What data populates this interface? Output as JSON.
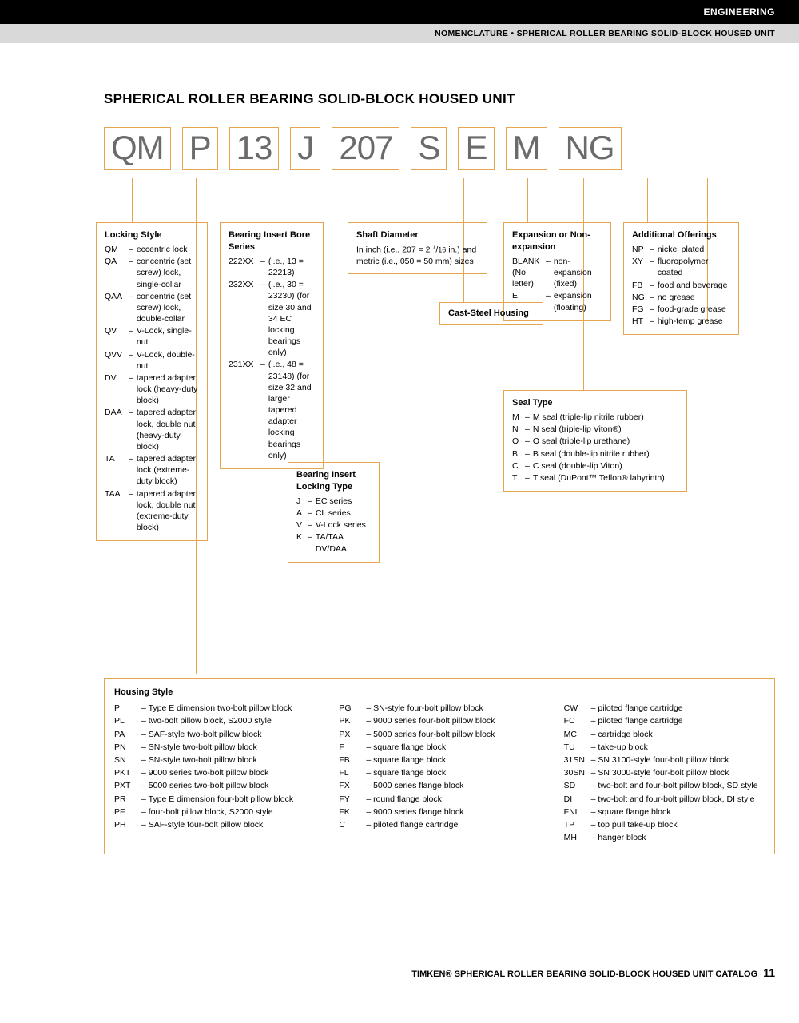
{
  "header": {
    "section": "ENGINEERING",
    "breadcrumb": "NOMENCLATURE • SPHERICAL ROLLER BEARING SOLID-BLOCK HOUSED UNIT"
  },
  "title": "SPHERICAL ROLLER BEARING SOLID-BLOCK HOUSED UNIT",
  "code_parts": [
    "QM",
    "P",
    "13",
    "J",
    "207",
    "S",
    "E",
    "M",
    "NG"
  ],
  "colors": {
    "box_border": "#e8a550",
    "code_text": "#6b6b6b",
    "header_black": "#000000",
    "header_gray": "#d9d9d9"
  },
  "locking_style": {
    "title": "Locking Style",
    "items": [
      {
        "c": "QM",
        "v": "eccentric lock"
      },
      {
        "c": "QA",
        "v": "concentric (set screw) lock, single-collar"
      },
      {
        "c": "QAA",
        "v": "concentric (set screw) lock, double-collar"
      },
      {
        "c": "QV",
        "v": "V-Lock, single-nut"
      },
      {
        "c": "QVV",
        "v": "V-Lock, double-nut"
      },
      {
        "c": "DV",
        "v": "tapered adapter lock (heavy-duty block)"
      },
      {
        "c": "DAA",
        "v": "tapered adapter lock, double nut (heavy-duty block)"
      },
      {
        "c": "TA",
        "v": "tapered adapter lock (extreme-duty block)"
      },
      {
        "c": "TAA",
        "v": "tapered adapter lock, double nut (extreme-duty block)"
      }
    ]
  },
  "bore_series": {
    "title": "Bearing Insert Bore Series",
    "items": [
      {
        "c": "222XX",
        "v": "(i.e., 13 = 22213)"
      },
      {
        "c": "232XX",
        "v": "(i.e., 30 = 23230) (for size 30 and 34 EC locking bearings only)"
      },
      {
        "c": "231XX",
        "v": "(i.e., 48 = 23148) (for size 32 and larger tapered adapter locking bearings only)"
      }
    ]
  },
  "locking_type": {
    "title": "Bearing Insert Locking Type",
    "items": [
      {
        "c": "J",
        "v": "EC series"
      },
      {
        "c": "A",
        "v": "CL series"
      },
      {
        "c": "V",
        "v": "V-Lock series"
      },
      {
        "c": "K",
        "v": "TA/TAA DV/DAA"
      }
    ]
  },
  "shaft_diameter": {
    "title": "Shaft Diameter",
    "text": "In inch (i.e., 207 = 2 7/16 in.) and metric (i.e., 050 = 50 mm) sizes"
  },
  "cast_steel": {
    "title": "Cast-Steel Housing"
  },
  "expansion": {
    "title": "Expansion or Non-expansion",
    "items": [
      {
        "c": "BLANK (No letter)",
        "v": "non-expansion (fixed)"
      },
      {
        "c": "E",
        "v": "expansion (floating)"
      }
    ]
  },
  "seal_type": {
    "title": "Seal Type",
    "items": [
      {
        "c": "M",
        "v": "M seal (triple-lip nitrile rubber)"
      },
      {
        "c": "N",
        "v": "N seal (triple-lip Viton®)"
      },
      {
        "c": "O",
        "v": "O seal (triple-lip urethane)"
      },
      {
        "c": "B",
        "v": "B seal (double-lip nitrile rubber)"
      },
      {
        "c": "C",
        "v": "C seal (double-lip Viton)"
      },
      {
        "c": "T",
        "v": "T seal (DuPont™ Teflon® labyrinth)"
      }
    ]
  },
  "additional": {
    "title": "Additional Offerings",
    "items": [
      {
        "c": "NP",
        "v": "nickel plated"
      },
      {
        "c": "XY",
        "v": "fluoropolymer coated"
      },
      {
        "c": "FB",
        "v": "food and beverage"
      },
      {
        "c": "NG",
        "v": "no grease"
      },
      {
        "c": "FG",
        "v": "food-grade grease"
      },
      {
        "c": "HT",
        "v": "high-temp grease"
      }
    ]
  },
  "housing_style": {
    "title": "Housing Style",
    "col1": [
      {
        "c": "P",
        "v": "Type E dimension two-bolt pillow block"
      },
      {
        "c": "PL",
        "v": "two-bolt pillow block, S2000 style"
      },
      {
        "c": "PA",
        "v": "SAF-style two-bolt pillow block"
      },
      {
        "c": "PN",
        "v": "SN-style two-bolt pillow block"
      },
      {
        "c": "SN",
        "v": "SN-style two-bolt pillow block"
      },
      {
        "c": "PKT",
        "v": "9000 series two-bolt pillow block"
      },
      {
        "c": "PXT",
        "v": "5000 series two-bolt pillow block"
      },
      {
        "c": "PR",
        "v": "Type E dimension four-bolt pillow block"
      },
      {
        "c": "PF",
        "v": "four-bolt pillow block, S2000 style"
      },
      {
        "c": "PH",
        "v": "SAF-style four-bolt pillow block"
      }
    ],
    "col2": [
      {
        "c": "PG",
        "v": "SN-style four-bolt pillow block"
      },
      {
        "c": "PK",
        "v": "9000 series four-bolt pillow block"
      },
      {
        "c": "PX",
        "v": "5000 series four-bolt pillow block"
      },
      {
        "c": "F",
        "v": "square flange block"
      },
      {
        "c": "FB",
        "v": "square flange block"
      },
      {
        "c": "FL",
        "v": "square flange block"
      },
      {
        "c": "FX",
        "v": "5000 series flange block"
      },
      {
        "c": "FY",
        "v": "round flange block"
      },
      {
        "c": "FK",
        "v": "9000 series flange block"
      },
      {
        "c": "C",
        "v": "piloted flange cartridge"
      }
    ],
    "col3": [
      {
        "c": "CW",
        "v": "piloted flange cartridge"
      },
      {
        "c": "FC",
        "v": "piloted flange cartridge"
      },
      {
        "c": "MC",
        "v": "cartridge block"
      },
      {
        "c": "TU",
        "v": "take-up block"
      },
      {
        "c": "31SN",
        "v": "SN 3100-style four-bolt pillow block"
      },
      {
        "c": "30SN",
        "v": "SN 3000-style four-bolt pillow block"
      },
      {
        "c": "SD",
        "v": "two-bolt and four-bolt pillow block, SD style"
      },
      {
        "c": "DI",
        "v": "two-bolt and four-bolt pillow block, DI style"
      },
      {
        "c": "FNL",
        "v": "square flange block"
      },
      {
        "c": "TP",
        "v": "top pull take-up block"
      },
      {
        "c": "MH",
        "v": "hanger block"
      }
    ]
  },
  "footer": {
    "text": "TIMKEN® SPHERICAL ROLLER BEARING SOLID-BLOCK HOUSED UNIT CATALOG",
    "page": "11"
  }
}
